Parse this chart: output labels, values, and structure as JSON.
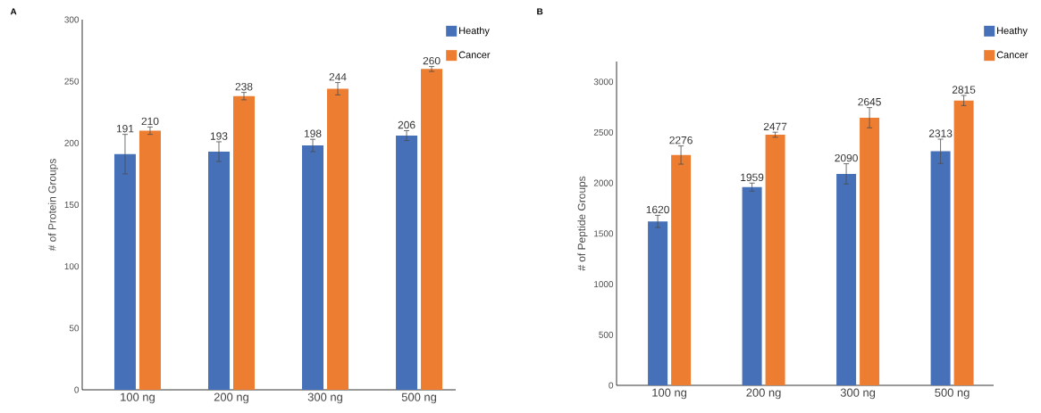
{
  "chart_data": [
    {
      "type": "bar",
      "title": "A",
      "ylabel": "# of Protein Groups",
      "categories": [
        "100 ng",
        "200 ng",
        "300 ng",
        "500 ng"
      ],
      "series": [
        {
          "name": "Heathy",
          "color": "#4670b8",
          "values": [
            191,
            193,
            198,
            206
          ],
          "errors": [
            16,
            8,
            5,
            4
          ]
        },
        {
          "name": "Cancer",
          "color": "#ed7d31",
          "values": [
            210,
            238,
            244,
            260
          ],
          "errors": [
            3,
            3,
            5,
            2
          ]
        }
      ],
      "ylim": [
        0,
        300
      ],
      "yticks": [
        0,
        50,
        100,
        150,
        200,
        250,
        300
      ],
      "data_labels": true,
      "legend": "top right",
      "grid": false
    },
    {
      "type": "bar",
      "title": "B",
      "ylabel": "# of Peptide Groups",
      "categories": [
        "100 ng",
        "200 ng",
        "300 ng",
        "500 ng"
      ],
      "series": [
        {
          "name": "Heathy",
          "color": "#4670b8",
          "values": [
            1620,
            1959,
            2090,
            2313
          ],
          "errors": [
            60,
            40,
            100,
            120
          ]
        },
        {
          "name": "Cancer",
          "color": "#ed7d31",
          "values": [
            2276,
            2477,
            2645,
            2815
          ],
          "errors": [
            90,
            25,
            100,
            50
          ]
        }
      ],
      "ylim": [
        0,
        3200
      ],
      "yticks": [
        0,
        500,
        1000,
        1500,
        2000,
        2500,
        3000
      ],
      "data_labels": true,
      "legend": "top right",
      "grid": false
    }
  ]
}
